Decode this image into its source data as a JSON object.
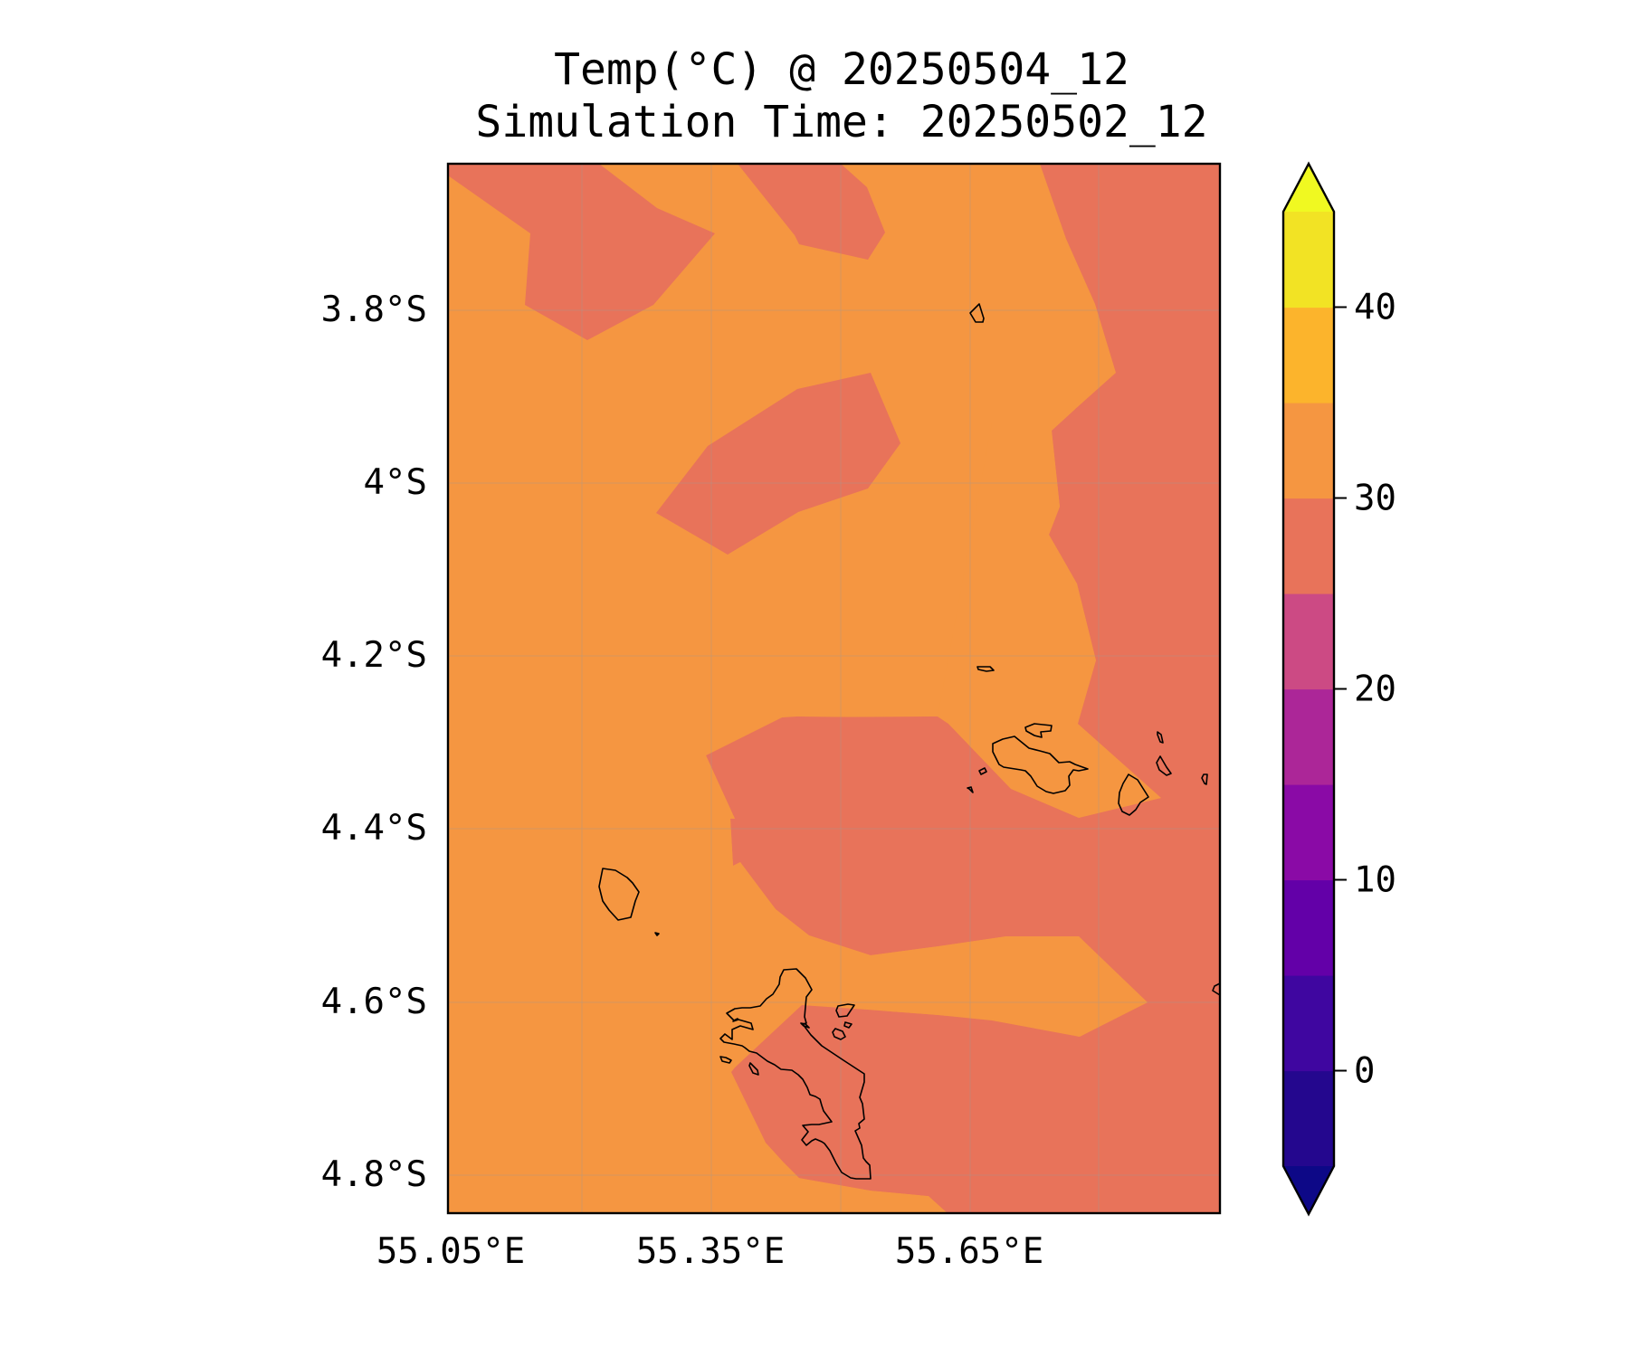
{
  "title": {
    "line1": "Temp(°C) @ 20250504_12",
    "line2": "Simulation Time: 20250502_12"
  },
  "map": {
    "lon_ticks": [
      "55.05°E",
      "55.35°E",
      "55.65°E"
    ],
    "lat_ticks": [
      "3.8°S",
      "4°S",
      "4.2°S",
      "4.4°S",
      "4.6°S",
      "4.8°S"
    ],
    "field_colors": {
      "level_25_30": "#e8735a",
      "level_30_35": "#f59641"
    }
  },
  "colorbar": {
    "tick_labels": [
      "0",
      "10",
      "20",
      "30",
      "40"
    ],
    "tick_values": [
      0,
      10,
      20,
      30,
      40
    ],
    "range": [
      -5,
      45
    ],
    "extend": "both",
    "levels": [
      {
        "from": -5,
        "to": 0,
        "color": "#24078e"
      },
      {
        "from": 0,
        "to": 5,
        "color": "#3f06a0"
      },
      {
        "from": 5,
        "to": 10,
        "color": "#6300a8"
      },
      {
        "from": 10,
        "to": 15,
        "color": "#8a0aa6"
      },
      {
        "from": 15,
        "to": 20,
        "color": "#ac2698"
      },
      {
        "from": 20,
        "to": 25,
        "color": "#cc4a84"
      },
      {
        "from": 25,
        "to": 30,
        "color": "#e8735a"
      },
      {
        "from": 30,
        "to": 35,
        "color": "#f59641"
      },
      {
        "from": 35,
        "to": 40,
        "color": "#fcb42c"
      },
      {
        "from": 40,
        "to": 45,
        "color": "#f2e324"
      }
    ],
    "under_color": "#0d0887",
    "over_color": "#f0f921"
  }
}
